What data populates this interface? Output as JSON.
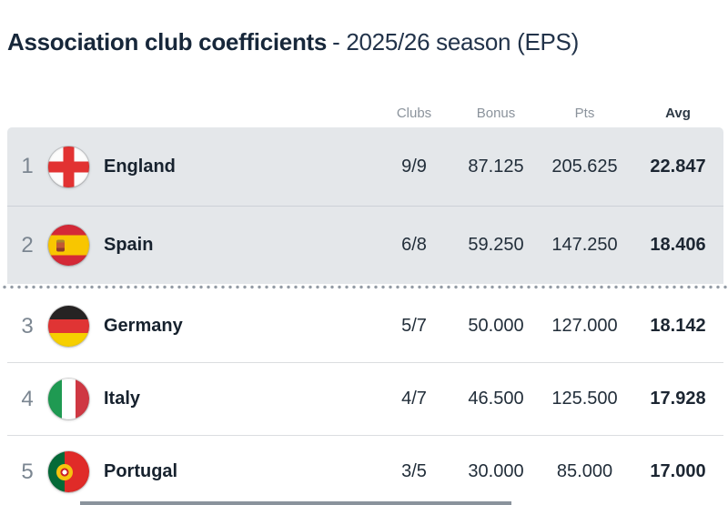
{
  "title": {
    "main": "Association club coefficients",
    "suffix": "- 2025/26 season (EPS)"
  },
  "header": {
    "clubs": "Clubs",
    "bonus": "Bonus",
    "pts": "Pts",
    "avg": "Avg"
  },
  "rows": [
    {
      "rank": "1",
      "country": "England",
      "flag": "england-flag",
      "clubs": "9/9",
      "bonus": "87.125",
      "pts": "205.625",
      "avg": "22.847",
      "highlighted": true
    },
    {
      "rank": "2",
      "country": "Spain",
      "flag": "spain-flag",
      "clubs": "6/8",
      "bonus": "59.250",
      "pts": "147.250",
      "avg": "18.406",
      "highlighted": true
    },
    {
      "rank": "3",
      "country": "Germany",
      "flag": "germany-flag",
      "clubs": "5/7",
      "bonus": "50.000",
      "pts": "127.000",
      "avg": "18.142",
      "highlighted": false
    },
    {
      "rank": "4",
      "country": "Italy",
      "flag": "italy-flag",
      "clubs": "4/7",
      "bonus": "46.500",
      "pts": "125.500",
      "avg": "17.928",
      "highlighted": false
    },
    {
      "rank": "5",
      "country": "Portugal",
      "flag": "portugal-flag",
      "clubs": "3/5",
      "bonus": "30.000",
      "pts": "85.000",
      "avg": "17.000",
      "highlighted": false
    }
  ],
  "colors": {
    "highlight_row_bg": "#e4e7ea",
    "title_text": "#17273a",
    "body_text": "#222e3a",
    "muted_text": "#8b939c",
    "divider_dots": "#949ca5",
    "row_border": "#dbdde0"
  }
}
